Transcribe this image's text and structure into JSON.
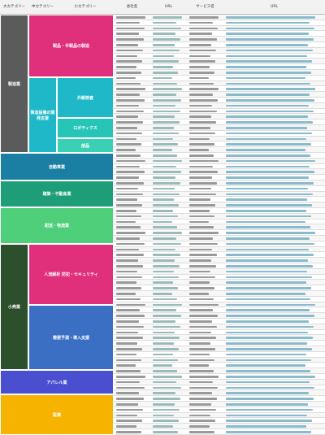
{
  "table": {
    "headers": [
      "大カテゴリー",
      "中カテゴリー",
      "小カテゴリー",
      "会社名",
      "URL",
      "サービス名",
      "URL"
    ],
    "groups": [
      {
        "label": "製造業"
      },
      {
        "label": "製品・半製品の製造"
      },
      {
        "label": "製造設備の開発支援"
      },
      {
        "label": "外観検査"
      },
      {
        "label": "ロボティクス"
      },
      {
        "label": "部品"
      },
      {
        "label": "自動車業"
      },
      {
        "label": "建築・不動産業"
      },
      {
        "label": "配送・物流業"
      },
      {
        "label": "小売業"
      },
      {
        "label": "人流解析 防犯・セキュリティ"
      },
      {
        "label": "需要予測・導入支援"
      },
      {
        "label": "アパレル業"
      },
      {
        "label": "医療"
      }
    ]
  }
}
